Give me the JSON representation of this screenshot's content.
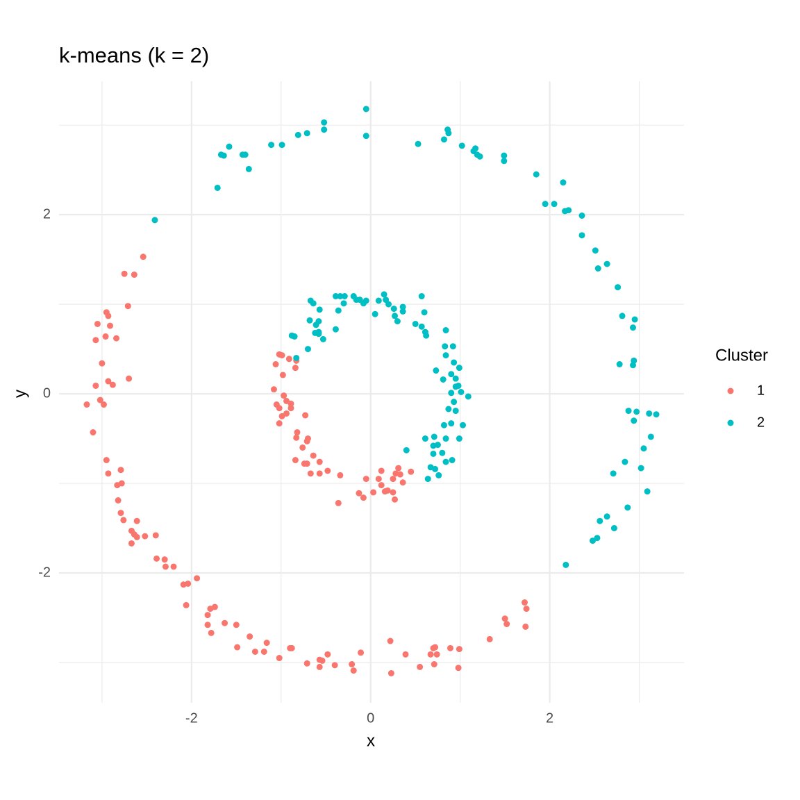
{
  "chart_data": {
    "type": "scatter",
    "title": "k-means (k = 2)",
    "x_label": "x",
    "y_label": "y",
    "xlim": [
      -3.48,
      3.5
    ],
    "ylim": [
      -3.45,
      3.49
    ],
    "xticks": [
      -2,
      0,
      2
    ],
    "yticks": [
      -2,
      0,
      2
    ],
    "grid": true,
    "minor_grid": true,
    "legend_title": "Cluster",
    "legend": "right",
    "series": [
      {
        "name": "1",
        "color": "#F8766D",
        "x": [
          -2.95,
          -2.93,
          -3.05,
          -2.91,
          -2.96,
          -2.84,
          -3.07,
          -2.75,
          -2.64,
          -2.54,
          -2.71,
          -3.0,
          -2.7,
          -2.93,
          -2.88,
          -3.07,
          -3.02,
          -2.98,
          -3.17,
          -3.1,
          -2.95,
          -2.79,
          -2.93,
          -2.78,
          -2.83,
          -2.82,
          -2.79,
          -2.76,
          -2.61,
          -2.67,
          -2.64,
          -2.61,
          -2.52,
          -2.4,
          -2.67,
          -2.39,
          -2.3,
          -2.29,
          -2.2,
          -1.94,
          -2.09,
          -2.04,
          -2.06,
          -1.79,
          -1.74,
          -1.82,
          -1.82,
          -1.78,
          -1.63,
          -1.5,
          -1.49,
          -1.35,
          -1.29,
          -1.16,
          -1.19,
          -1.02,
          -0.9,
          -0.88,
          -0.71,
          -0.57,
          -0.54,
          -0.57,
          -0.48,
          -0.4,
          -0.21,
          -0.19,
          -0.11,
          0.22,
          0.23,
          0.39,
          0.55,
          0.7,
          0.72,
          0.67,
          0.71,
          0.74,
          0.89,
          0.99,
          0.98,
          1.33,
          1.5,
          1.52,
          1.72,
          1.74,
          1.73,
          -1.02,
          -0.99,
          -0.91,
          -0.83,
          -1.06,
          -0.84,
          -0.98,
          -1.08,
          -0.97,
          -1.05,
          -0.94,
          -0.89,
          -1.02,
          -0.89,
          -0.94,
          -0.99,
          -1.02,
          -0.73,
          -0.82,
          -0.83,
          -0.7,
          -0.71,
          -0.76,
          -0.64,
          -0.84,
          -0.57,
          -0.74,
          -0.71,
          -0.67,
          -0.57,
          -0.48,
          -0.34,
          -0.36,
          -0.05,
          -0.13,
          -0.08,
          0.03,
          0.12,
          0.12,
          0.16,
          0.19,
          0.25,
          0.27,
          0.25,
          0.28,
          0.31,
          0.33,
          0.36,
          0.45,
          0.09
        ],
        "values": [
          0.91,
          0.87,
          0.78,
          0.76,
          0.64,
          0.62,
          0.6,
          1.34,
          1.33,
          1.53,
          0.98,
          0.34,
          0.17,
          0.14,
          0.1,
          0.09,
          -0.07,
          -0.12,
          -0.12,
          -0.43,
          -0.74,
          -0.85,
          -0.89,
          -1.0,
          -1.02,
          -1.19,
          -1.33,
          -1.41,
          -1.42,
          -1.53,
          -1.57,
          -1.6,
          -1.59,
          -1.58,
          -1.67,
          -1.84,
          -1.85,
          -1.93,
          -1.93,
          -2.06,
          -2.13,
          -2.12,
          -2.36,
          -2.4,
          -2.38,
          -2.47,
          -2.58,
          -2.67,
          -2.56,
          -2.58,
          -2.83,
          -2.71,
          -2.88,
          -2.78,
          -2.88,
          -2.95,
          -2.84,
          -2.84,
          -3.01,
          -2.97,
          -2.98,
          -3.05,
          -2.91,
          -3.03,
          -3.02,
          -3.09,
          -2.89,
          -2.76,
          -3.12,
          -2.91,
          -3.05,
          -2.84,
          -2.83,
          -2.91,
          -3.02,
          -2.91,
          -2.84,
          -2.85,
          -3.06,
          -2.74,
          -2.51,
          -2.57,
          -2.33,
          -2.4,
          -2.6,
          0.44,
          0.43,
          0.39,
          0.37,
          0.33,
          0.29,
          0.21,
          0.05,
          -0.02,
          -0.12,
          -0.08,
          -0.11,
          -0.16,
          -0.16,
          -0.22,
          -0.25,
          -0.33,
          -0.24,
          -0.43,
          -0.49,
          -0.5,
          -0.53,
          -0.6,
          -0.69,
          -0.74,
          -0.76,
          -0.78,
          -0.78,
          -0.89,
          -0.89,
          -0.86,
          -0.91,
          -1.22,
          -0.95,
          -1.11,
          -1.16,
          -1.1,
          -0.86,
          -1.02,
          -1.09,
          -1.08,
          -1.1,
          -1.18,
          -0.95,
          -0.89,
          -0.83,
          -0.9,
          -0.99,
          -0.87,
          -0.95
        ]
      },
      {
        "name": "2",
        "color": "#00BFC4",
        "x": [
          -0.05,
          -0.05,
          -0.52,
          -0.52,
          -0.71,
          -0.81,
          -0.99,
          -1.11,
          -1.36,
          -1.4,
          -1.43,
          -1.58,
          -1.64,
          -1.67,
          -1.71,
          -2.41,
          0.53,
          0.82,
          0.86,
          0.87,
          1.02,
          1.15,
          1.17,
          1.19,
          1.22,
          1.49,
          1.49,
          1.85,
          2.15,
          1.95,
          2.05,
          2.17,
          2.21,
          2.36,
          2.36,
          2.51,
          2.54,
          2.64,
          2.76,
          2.81,
          2.93,
          2.95,
          2.78,
          2.94,
          2.93,
          2.88,
          2.97,
          2.94,
          3.11,
          3.19,
          3.13,
          3.05,
          2.84,
          2.71,
          3.02,
          3.09,
          2.87,
          2.64,
          2.56,
          2.72,
          2.53,
          2.48,
          2.18,
          -0.39,
          -0.34,
          -0.29,
          -0.19,
          -0.16,
          -0.12,
          -0.05,
          -0.08,
          0.09,
          0.15,
          0.17,
          0.2,
          0.05,
          0.26,
          0.36,
          0.36,
          0.57,
          0.6,
          0.27,
          0.3,
          0.5,
          0.57,
          0.61,
          0.62,
          0.84,
          -0.67,
          -0.64,
          -0.57,
          -0.36,
          -0.3,
          -0.68,
          -0.58,
          -0.61,
          -0.39,
          -0.53,
          -0.62,
          -0.58,
          -0.58,
          -0.88,
          -0.85,
          -0.7,
          -0.83,
          0.83,
          0.92,
          0.84,
          0.93,
          0.73,
          0.99,
          0.9,
          0.95,
          0.81,
          0.98,
          0.95,
          0.9,
          1.01,
          1.09,
          0.93,
          0.87,
          0.95,
          1.03,
          0.9,
          0.82,
          0.61,
          0.71,
          0.84,
          0.99,
          0.4,
          0.75,
          0.7,
          0.8,
          0.7,
          0.84,
          0.91,
          0.67,
          0.72,
          0.76,
          0.64
        ],
        "values": [
          3.18,
          2.88,
          3.03,
          2.95,
          2.91,
          2.89,
          2.78,
          2.78,
          2.51,
          2.67,
          2.67,
          2.76,
          2.66,
          2.67,
          2.3,
          1.94,
          2.79,
          2.84,
          2.95,
          2.91,
          2.77,
          2.71,
          2.74,
          2.67,
          2.65,
          2.66,
          2.6,
          2.45,
          2.36,
          2.12,
          2.12,
          2.04,
          2.05,
          1.99,
          1.77,
          1.6,
          1.4,
          1.45,
          1.19,
          0.87,
          0.74,
          0.83,
          0.33,
          0.37,
          0.32,
          -0.19,
          -0.2,
          -0.3,
          -0.22,
          -0.23,
          -0.48,
          -0.61,
          -0.76,
          -0.89,
          -0.83,
          -1.09,
          -1.27,
          -1.37,
          -1.42,
          -1.5,
          -1.61,
          -1.64,
          -1.91,
          1.09,
          1.09,
          1.09,
          1.09,
          1.05,
          1.05,
          1.04,
          1.01,
          1.04,
          1.11,
          1.05,
          1.0,
          0.89,
          0.95,
          0.97,
          0.92,
          1.09,
          0.91,
          0.87,
          0.81,
          0.78,
          0.75,
          0.69,
          0.65,
          0.71,
          1.04,
          1.01,
          0.94,
          0.93,
          1.01,
          0.82,
          0.81,
          0.77,
          0.72,
          0.61,
          0.68,
          0.67,
          0.69,
          0.65,
          0.64,
          0.5,
          0.4,
          0.53,
          0.53,
          0.43,
          0.35,
          0.26,
          0.29,
          0.22,
          0.17,
          0.16,
          0.09,
          0.08,
          0.01,
          0.02,
          -0.03,
          -0.09,
          -0.17,
          -0.19,
          -0.35,
          -0.33,
          -0.35,
          -0.5,
          -0.48,
          -0.5,
          -0.5,
          -0.63,
          -0.57,
          -0.58,
          -0.66,
          -0.67,
          -0.76,
          -0.74,
          -0.82,
          -0.84,
          -0.91,
          -0.95
        ]
      }
    ]
  }
}
